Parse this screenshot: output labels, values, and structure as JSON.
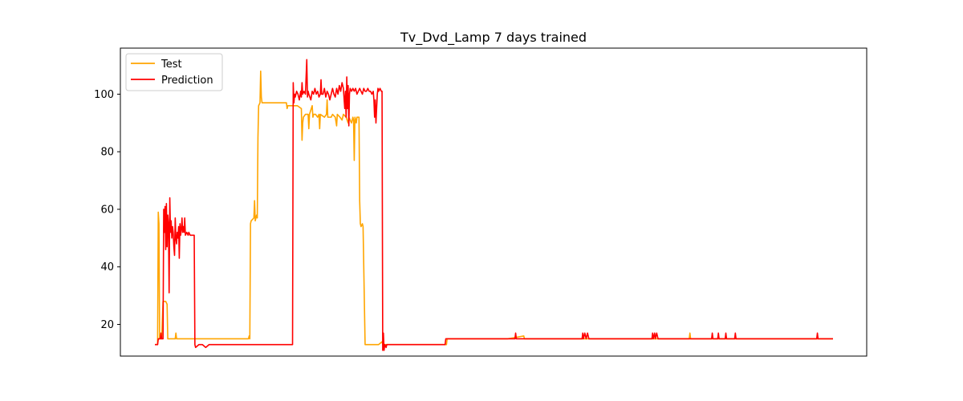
{
  "chart_data": {
    "type": "line",
    "title": "Tv_Dvd_Lamp 7 days trained",
    "xlabel": "",
    "ylabel": "",
    "xlim": [
      0,
      1000
    ],
    "ylim": [
      9,
      116
    ],
    "yticks": [
      20,
      40,
      60,
      80,
      100
    ],
    "xticks": [],
    "grid": false,
    "legend_position": "top-left",
    "series": [
      {
        "name": "Test",
        "color": "#FFA500",
        "points": [
          [
            0,
            13
          ],
          [
            4,
            13
          ],
          [
            5,
            59
          ],
          [
            6,
            55
          ],
          [
            7,
            15
          ],
          [
            8,
            15
          ],
          [
            10,
            15
          ],
          [
            12,
            28
          ],
          [
            16,
            28
          ],
          [
            18,
            27
          ],
          [
            19,
            15
          ],
          [
            30,
            15
          ],
          [
            31,
            17
          ],
          [
            32,
            15
          ],
          [
            70,
            15
          ],
          [
            100,
            15
          ],
          [
            130,
            15
          ],
          [
            138,
            15
          ],
          [
            139,
            16
          ],
          [
            140,
            15
          ],
          [
            141,
            55
          ],
          [
            142,
            56
          ],
          [
            146,
            57
          ],
          [
            147,
            63
          ],
          [
            148,
            56
          ],
          [
            150,
            58
          ],
          [
            151,
            57
          ],
          [
            152,
            85
          ],
          [
            153,
            96
          ],
          [
            155,
            97
          ],
          [
            156,
            108
          ],
          [
            157,
            99
          ],
          [
            158,
            97
          ],
          [
            170,
            97
          ],
          [
            180,
            97
          ],
          [
            194,
            97
          ],
          [
            195,
            95
          ],
          [
            196,
            96
          ],
          [
            210,
            96
          ],
          [
            216,
            95
          ],
          [
            217,
            84
          ],
          [
            218,
            90
          ],
          [
            219,
            92
          ],
          [
            222,
            93
          ],
          [
            226,
            93
          ],
          [
            227,
            88
          ],
          [
            228,
            93
          ],
          [
            232,
            96
          ],
          [
            233,
            92
          ],
          [
            234,
            93
          ],
          [
            237,
            93
          ],
          [
            240,
            92
          ],
          [
            242,
            93
          ],
          [
            243,
            88
          ],
          [
            244,
            93
          ],
          [
            250,
            92
          ],
          [
            253,
            93
          ],
          [
            254,
            98
          ],
          [
            255,
            92
          ],
          [
            260,
            92
          ],
          [
            262,
            93
          ],
          [
            266,
            92
          ],
          [
            268,
            89
          ],
          [
            269,
            93
          ],
          [
            273,
            92
          ],
          [
            276,
            91
          ],
          [
            278,
            93
          ],
          [
            282,
            92
          ],
          [
            285,
            90
          ],
          [
            286,
            92
          ],
          [
            290,
            90
          ],
          [
            292,
            92
          ],
          [
            293,
            91
          ],
          [
            294,
            77
          ],
          [
            295,
            92
          ],
          [
            297,
            90
          ],
          [
            298,
            92
          ],
          [
            301,
            92
          ],
          [
            302,
            63
          ],
          [
            303,
            55
          ],
          [
            304,
            54
          ],
          [
            306,
            55
          ],
          [
            307,
            54
          ],
          [
            310,
            13
          ],
          [
            320,
            13
          ],
          [
            330,
            13
          ],
          [
            335,
            14
          ],
          [
            336,
            13
          ],
          [
            348,
            13
          ],
          [
            350,
            13
          ],
          [
            390,
            13
          ],
          [
            400,
            13
          ],
          [
            418,
            13
          ],
          [
            430,
            13
          ],
          [
            431,
            15
          ],
          [
            440,
            15
          ],
          [
            455,
            15
          ],
          [
            520,
            15
          ],
          [
            544,
            16
          ],
          [
            545,
            15
          ],
          [
            600,
            15
          ],
          [
            660,
            15
          ],
          [
            680,
            15
          ],
          [
            700,
            15
          ],
          [
            730,
            15
          ],
          [
            740,
            15
          ],
          [
            788,
            15
          ],
          [
            789,
            17
          ],
          [
            790,
            15
          ],
          [
            840,
            15
          ],
          [
            845,
            15
          ],
          [
            900,
            15
          ],
          [
            960,
            15
          ],
          [
            1000,
            15
          ]
        ]
      },
      {
        "name": "Prediction",
        "color": "#FF0000",
        "points": [
          [
            0,
            13
          ],
          [
            4,
            13
          ],
          [
            5,
            15
          ],
          [
            8,
            15
          ],
          [
            9,
            17
          ],
          [
            10,
            15
          ],
          [
            12,
            15
          ],
          [
            13,
            60
          ],
          [
            14,
            52
          ],
          [
            15,
            61
          ],
          [
            16,
            46
          ],
          [
            17,
            62
          ],
          [
            18,
            47
          ],
          [
            19,
            58
          ],
          [
            20,
            55
          ],
          [
            21,
            31
          ],
          [
            22,
            64
          ],
          [
            23,
            52
          ],
          [
            24,
            56
          ],
          [
            25,
            50
          ],
          [
            26,
            54
          ],
          [
            27,
            52
          ],
          [
            28,
            47
          ],
          [
            29,
            44
          ],
          [
            30,
            57
          ],
          [
            31,
            50
          ],
          [
            32,
            48
          ],
          [
            33,
            52
          ],
          [
            34,
            50
          ],
          [
            35,
            54
          ],
          [
            36,
            43
          ],
          [
            37,
            55
          ],
          [
            38,
            51
          ],
          [
            39,
            53
          ],
          [
            40,
            57
          ],
          [
            41,
            52
          ],
          [
            42,
            54
          ],
          [
            43,
            52
          ],
          [
            44,
            57
          ],
          [
            45,
            51
          ],
          [
            47,
            52
          ],
          [
            49,
            51
          ],
          [
            50,
            52
          ],
          [
            52,
            51
          ],
          [
            55,
            51
          ],
          [
            56,
            51
          ],
          [
            58,
            51
          ],
          [
            59,
            13
          ],
          [
            60,
            12
          ],
          [
            65,
            13
          ],
          [
            70,
            13
          ],
          [
            75,
            12
          ],
          [
            80,
            13
          ],
          [
            90,
            13
          ],
          [
            100,
            13
          ],
          [
            120,
            13
          ],
          [
            150,
            13
          ],
          [
            180,
            13
          ],
          [
            200,
            13
          ],
          [
            203,
            13
          ],
          [
            204,
            104
          ],
          [
            205,
            97
          ],
          [
            206,
            100
          ],
          [
            207,
            99
          ],
          [
            209,
            101
          ],
          [
            211,
            100
          ],
          [
            213,
            98
          ],
          [
            215,
            101
          ],
          [
            216,
            99
          ],
          [
            217,
            104
          ],
          [
            218,
            100
          ],
          [
            220,
            101
          ],
          [
            222,
            100
          ],
          [
            224,
            112
          ],
          [
            225,
            99
          ],
          [
            226,
            101
          ],
          [
            227,
            100
          ],
          [
            230,
            98
          ],
          [
            232,
            101
          ],
          [
            234,
            100
          ],
          [
            236,
            102
          ],
          [
            238,
            100
          ],
          [
            240,
            101
          ],
          [
            242,
            99
          ],
          [
            244,
            100
          ],
          [
            245,
            105
          ],
          [
            246,
            100
          ],
          [
            248,
            100
          ],
          [
            250,
            102
          ],
          [
            252,
            99
          ],
          [
            254,
            101
          ],
          [
            256,
            100
          ],
          [
            258,
            98
          ],
          [
            260,
            100
          ],
          [
            262,
            102
          ],
          [
            264,
            100
          ],
          [
            266,
            99
          ],
          [
            268,
            102
          ],
          [
            270,
            100
          ],
          [
            272,
            103
          ],
          [
            274,
            101
          ],
          [
            276,
            104
          ],
          [
            278,
            102
          ],
          [
            280,
            95
          ],
          [
            281,
            101
          ],
          [
            282,
            92
          ],
          [
            283,
            106
          ],
          [
            284,
            95
          ],
          [
            285,
            103
          ],
          [
            286,
            89
          ],
          [
            287,
            100
          ],
          [
            288,
            102
          ],
          [
            290,
            101
          ],
          [
            292,
            102
          ],
          [
            294,
            101
          ],
          [
            296,
            102
          ],
          [
            298,
            100
          ],
          [
            300,
            101
          ],
          [
            302,
            102
          ],
          [
            304,
            101
          ],
          [
            306,
            100
          ],
          [
            308,
            102
          ],
          [
            310,
            101
          ],
          [
            312,
            101
          ],
          [
            314,
            102
          ],
          [
            316,
            101
          ],
          [
            318,
            101
          ],
          [
            320,
            100
          ],
          [
            322,
            101
          ],
          [
            323,
            98
          ],
          [
            324,
            92
          ],
          [
            325,
            98
          ],
          [
            326,
            90
          ],
          [
            327,
            95
          ],
          [
            328,
            100
          ],
          [
            329,
            102
          ],
          [
            330,
            101
          ],
          [
            332,
            102
          ],
          [
            334,
            101
          ],
          [
            335,
            101
          ],
          [
            336,
            11
          ],
          [
            337,
            17
          ],
          [
            338,
            11
          ],
          [
            339,
            13
          ],
          [
            341,
            12
          ],
          [
            342,
            13
          ],
          [
            360,
            13
          ],
          [
            380,
            13
          ],
          [
            400,
            13
          ],
          [
            428,
            13
          ],
          [
            429,
            15
          ],
          [
            440,
            15
          ],
          [
            460,
            15
          ],
          [
            531,
            15
          ],
          [
            532,
            17
          ],
          [
            533,
            15
          ],
          [
            600,
            15
          ],
          [
            630,
            15
          ],
          [
            631,
            17
          ],
          [
            632,
            15
          ],
          [
            634,
            17
          ],
          [
            636,
            15
          ],
          [
            638,
            17
          ],
          [
            640,
            15
          ],
          [
            680,
            15
          ],
          [
            733,
            15
          ],
          [
            734,
            17
          ],
          [
            735,
            15
          ],
          [
            737,
            17
          ],
          [
            738,
            15
          ],
          [
            740,
            17
          ],
          [
            742,
            15
          ],
          [
            780,
            15
          ],
          [
            800,
            15
          ],
          [
            821,
            15
          ],
          [
            822,
            17
          ],
          [
            823,
            15
          ],
          [
            830,
            15
          ],
          [
            831,
            17
          ],
          [
            832,
            15
          ],
          [
            841,
            15
          ],
          [
            842,
            17
          ],
          [
            843,
            15
          ],
          [
            855,
            15
          ],
          [
            856,
            17
          ],
          [
            857,
            15
          ],
          [
            900,
            15
          ],
          [
            950,
            15
          ],
          [
            976,
            15
          ],
          [
            977,
            17
          ],
          [
            978,
            15
          ],
          [
            1000,
            15
          ]
        ]
      }
    ]
  },
  "colors": {
    "test": "#FFA500",
    "prediction": "#FF0000",
    "axes": "#000000",
    "background": "#FFFFFF"
  }
}
